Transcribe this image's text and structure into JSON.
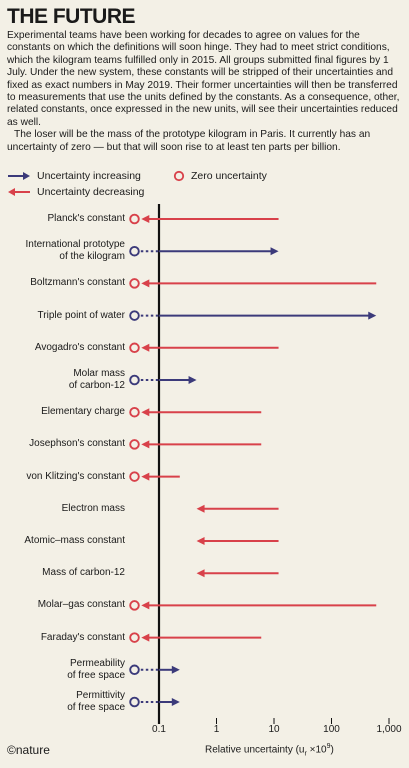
{
  "title": "THE FUTURE",
  "intro": [
    "Experimental teams have been working for decades to agree on values for the constants on which the definitions will soon hinge. They had to meet strict conditions, which the kilogram teams fulfilled only in 2015. All groups submitted final figures by 1 July.  Under the new system, these constants will be stripped of their uncertainties and fixed as exact numbers in May 2019. Their former uncertainties will then be transferred to measurements that use the units defined by the constants. As a consequence, other, related constants, once expressed in the new units, will see their uncertainties reduced as well.",
    "The loser will be the mass of the prototype kilogram in Paris. It currently has an uncertainty of zero — but that will soon rise to at least ten parts per billion."
  ],
  "legend": {
    "increasing": "Uncertainty increasing",
    "decreasing": "Uncertainty decreasing",
    "zero": "Zero uncertainty"
  },
  "colors": {
    "increasing": "#3b3a7a",
    "decreasing": "#d8414a",
    "axis": "#111111",
    "background": "#f3f0e6"
  },
  "logo": "©nature",
  "chart_data": {
    "type": "bar",
    "scale": "log",
    "xlabel": "Relative uncertainty (u",
    "xlabel_sub": "r",
    "xlabel_tail": " ×10",
    "xlabel_sup": "9",
    "xlabel_end": ")",
    "xlim": [
      0.1,
      1000
    ],
    "ticks": [
      {
        "value": 0.1,
        "label": "0.1"
      },
      {
        "value": 1,
        "label": "1"
      },
      {
        "value": 10,
        "label": "10"
      },
      {
        "value": 100,
        "label": "100"
      },
      {
        "value": 1000,
        "label": "1,000"
      }
    ],
    "items": [
      {
        "label": [
          "Planck's constant"
        ],
        "direction": "decreasing",
        "from": 12,
        "to": 0.1,
        "zero_end": true
      },
      {
        "label": [
          "International prototype",
          "of the kilogram"
        ],
        "direction": "increasing",
        "from": 0.1,
        "to": 12,
        "zero_end": true
      },
      {
        "label": [
          "Boltzmann's constant"
        ],
        "direction": "decreasing",
        "from": 600,
        "to": 0.1,
        "zero_end": true
      },
      {
        "label": [
          "Triple point of water"
        ],
        "direction": "increasing",
        "from": 0.1,
        "to": 600,
        "zero_end": true
      },
      {
        "label": [
          "Avogadro's constant"
        ],
        "direction": "decreasing",
        "from": 12,
        "to": 0.1,
        "zero_end": true
      },
      {
        "label": [
          "Molar mass",
          "of carbon-12"
        ],
        "direction": "increasing",
        "from": 0.1,
        "to": 0.45,
        "zero_end": true
      },
      {
        "label": [
          "Elementary charge"
        ],
        "direction": "decreasing",
        "from": 6,
        "to": 0.1,
        "zero_end": true
      },
      {
        "label": [
          "Josephson's constant"
        ],
        "direction": "decreasing",
        "from": 6,
        "to": 0.1,
        "zero_end": true
      },
      {
        "label": [
          "von Klitzing's constant"
        ],
        "direction": "decreasing",
        "from": 0.23,
        "to": 0.1,
        "zero_end": true
      },
      {
        "label": [
          "Electron mass"
        ],
        "direction": "decreasing",
        "from": 12,
        "to": 0.45,
        "zero_end": false
      },
      {
        "label": [
          "Atomic–mass constant"
        ],
        "direction": "decreasing",
        "from": 12,
        "to": 0.45,
        "zero_end": false
      },
      {
        "label": [
          "Mass of carbon-12"
        ],
        "direction": "decreasing",
        "from": 12,
        "to": 0.45,
        "zero_end": false
      },
      {
        "label": [
          "Molar–gas constant"
        ],
        "direction": "decreasing",
        "from": 600,
        "to": 0.1,
        "zero_end": true
      },
      {
        "label": [
          "Faraday's constant"
        ],
        "direction": "decreasing",
        "from": 6,
        "to": 0.1,
        "zero_end": true
      },
      {
        "label": [
          "Permeability",
          "of free space"
        ],
        "direction": "increasing",
        "from": 0.1,
        "to": 0.23,
        "zero_end": true
      },
      {
        "label": [
          "Permittivity",
          "of free space"
        ],
        "direction": "increasing",
        "from": 0.1,
        "to": 0.23,
        "zero_end": true
      }
    ]
  }
}
